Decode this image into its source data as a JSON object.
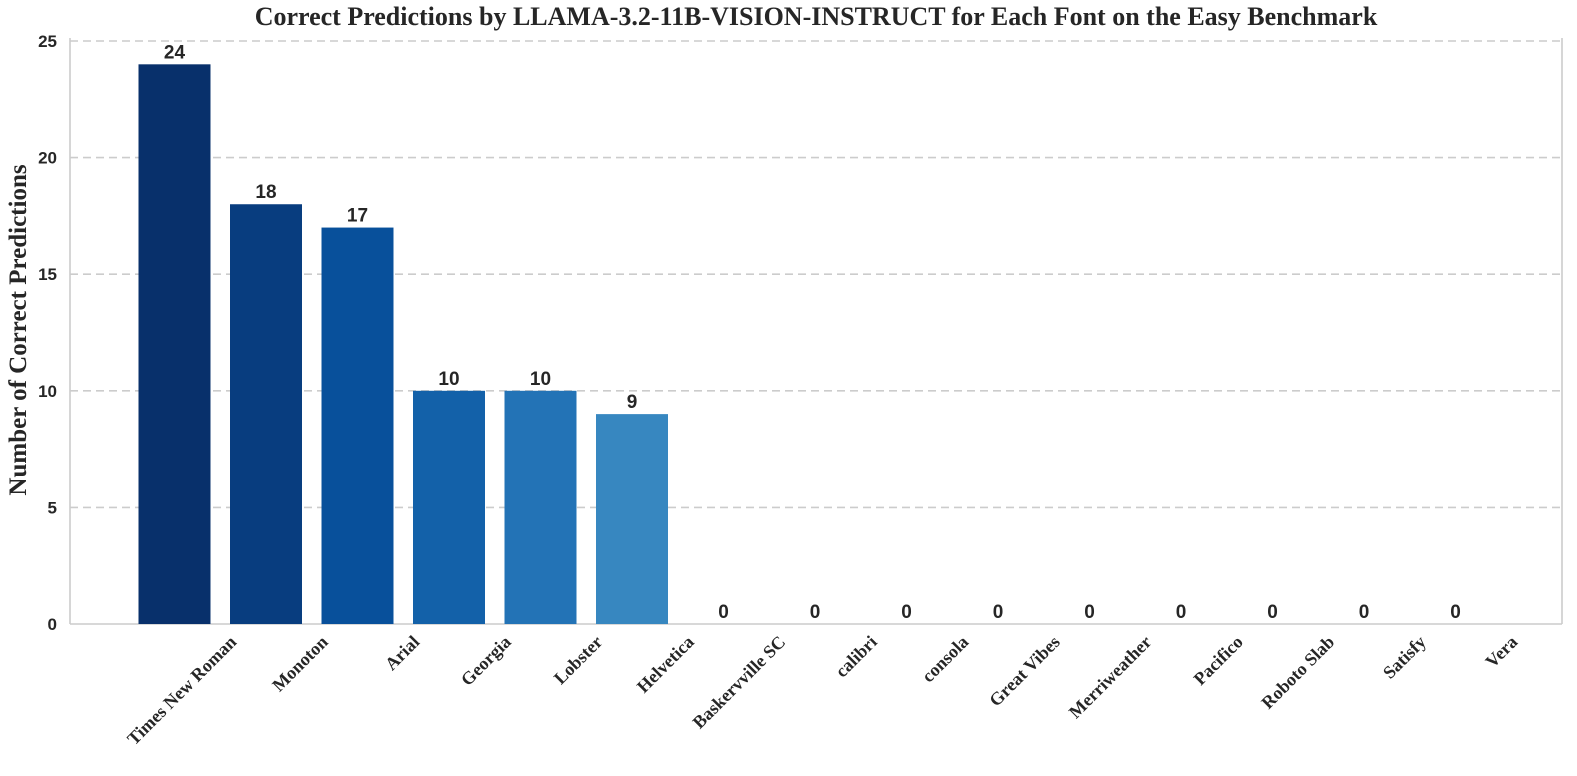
{
  "chart_data": {
    "type": "bar",
    "title": "Correct Predictions by LLAMA-3.2-11B-VISION-INSTRUCT for Each Font on the Easy Benchmark",
    "xlabel": "",
    "ylabel": "Number of Correct Predictions",
    "categories": [
      "Times New Roman",
      "Monoton",
      "Arial",
      "Georgia",
      "Lobster",
      "Helvetica",
      "Baskervville SC",
      "calibri",
      "consola",
      "Great Vibes",
      "Merriweather",
      "Pacifico",
      "Roboto Slab",
      "Satisfy",
      "Vera"
    ],
    "values": [
      24,
      18,
      17,
      10,
      10,
      9,
      0,
      0,
      0,
      0,
      0,
      0,
      0,
      0,
      0
    ],
    "ylim": [
      0,
      25
    ],
    "yticks": [
      0,
      5,
      10,
      15,
      20,
      25
    ],
    "grid": true,
    "grid_style": "dashed horizontal",
    "colors": [
      "#08306b",
      "#083d7f",
      "#08509b",
      "#1361a9",
      "#2373b6",
      "#3787c0",
      "#4a98c9",
      "#5da5d1",
      "#72b2d7",
      "#89bfdd",
      "#a0cbe2",
      "#b4d5e8",
      "#c6dbef",
      "#d2e3f3",
      "#deebf7"
    ],
    "data_labels": true
  }
}
